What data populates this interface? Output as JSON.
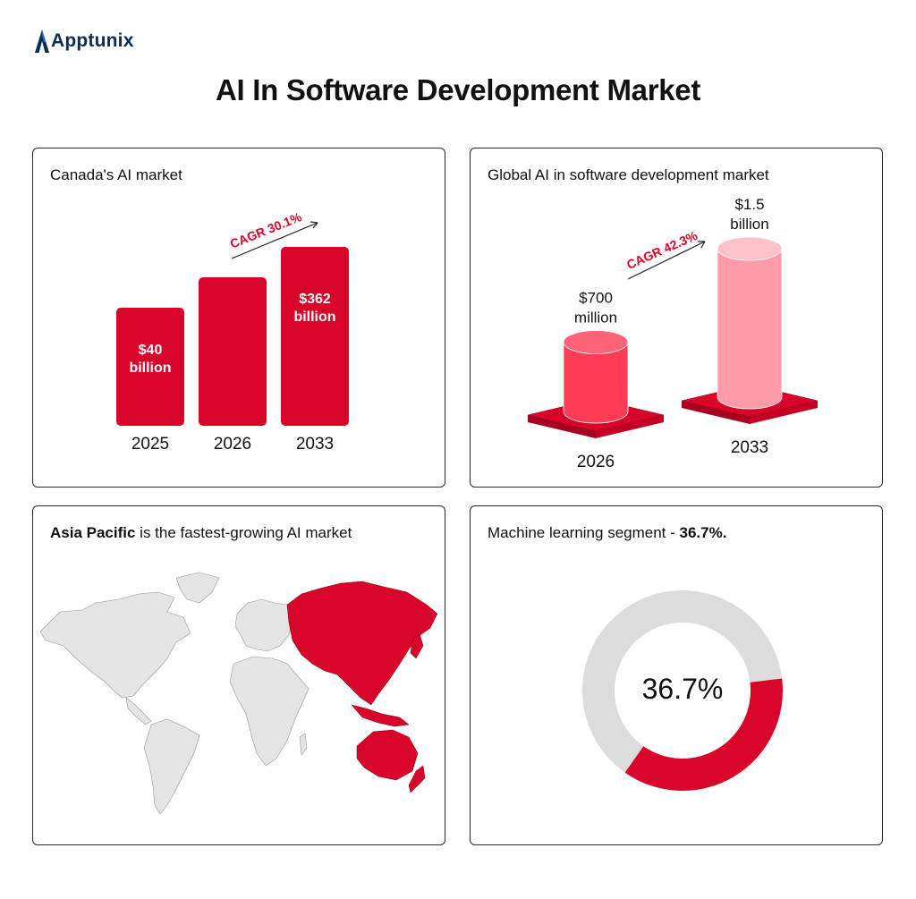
{
  "brand": {
    "name": "Apptunix"
  },
  "title": "AI In Software Development Market",
  "colors": {
    "red": "#d90429",
    "pink": "#ff9aa8",
    "gray": "#dcdcdc",
    "map_gray": "#e4e4e4",
    "navy": "#0e2b52"
  },
  "icons": {
    "logo": "apptunix-logo-icon",
    "arrow": "trend-arrow-icon"
  },
  "panels": {
    "canada": {
      "title": "Canada's AI market"
    },
    "global": {
      "title": "Global AI in software development market"
    },
    "asia": {
      "title_bold": "Asia Pacific",
      "title_rest": " is the fastest-growing AI market"
    },
    "ml": {
      "title_rest": "Machine learning segment - ",
      "title_bold": "36.7%."
    }
  },
  "chart_data": [
    {
      "type": "bar",
      "title": "Canada's AI market",
      "categories": [
        "2025",
        "2026",
        "2033"
      ],
      "values": [
        40,
        null,
        362
      ],
      "labels": [
        "$40\nbillion",
        "",
        "$362\nbillion"
      ],
      "label_lines": [
        [
          "$40",
          "billion"
        ],
        [],
        [
          "$362",
          "billion"
        ]
      ],
      "unit": "billion USD",
      "annotation": "CAGR 30.1%"
    },
    {
      "type": "bar",
      "title": "Global AI in software development market",
      "categories": [
        "2026",
        "2033"
      ],
      "values": [
        0.7,
        1.5
      ],
      "label_lines": [
        [
          "$700",
          "million"
        ],
        [
          "$1.5",
          "billion"
        ]
      ],
      "unit": "billion USD",
      "annotation": "CAGR 42.3%"
    },
    {
      "type": "pie",
      "title": "Machine learning segment - 36.7%.",
      "slices": [
        {
          "name": "Machine learning",
          "value": 36.7,
          "color": "#d90429"
        },
        {
          "name": "Other",
          "value": 63.3,
          "color": "#dcdcdc"
        }
      ],
      "center_label": "36.7%"
    }
  ]
}
